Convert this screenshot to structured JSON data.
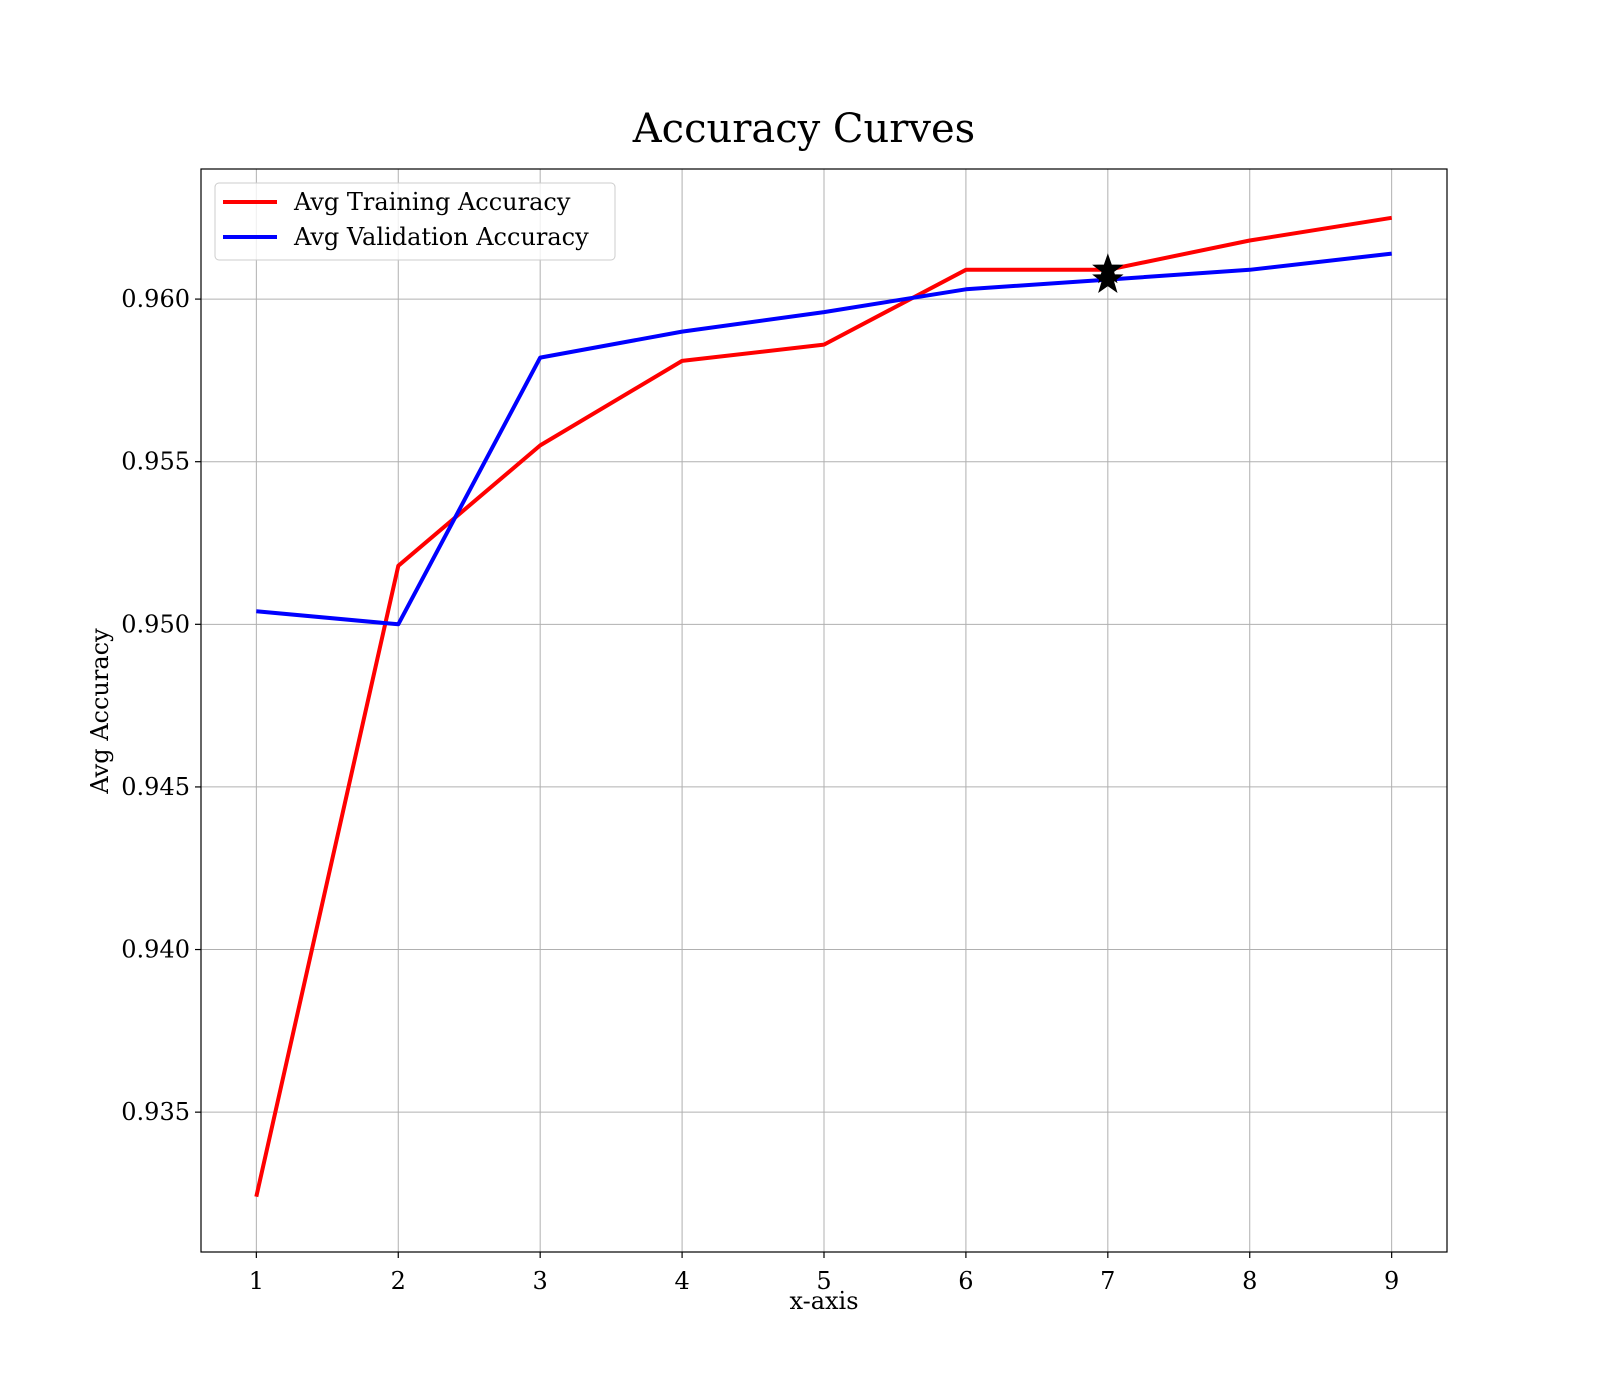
{
  "chart_data": {
    "type": "line",
    "title": "Accuracy Curves",
    "xlabel": "x-axis",
    "ylabel": "Avg Accuracy",
    "x": [
      1,
      2,
      3,
      4,
      5,
      6,
      7,
      8,
      9
    ],
    "xticks": [
      "1",
      "2",
      "3",
      "4",
      "5",
      "6",
      "7",
      "8",
      "9"
    ],
    "yticks": [
      "0.935",
      "0.940",
      "0.945",
      "0.950",
      "0.955",
      "0.960"
    ],
    "ytick_values": [
      0.935,
      0.94,
      0.945,
      0.95,
      0.955,
      0.96
    ],
    "xlim": [
      0.61,
      9.39
    ],
    "ylim": [
      0.9307,
      0.964
    ],
    "grid": true,
    "legend_position": "upper-left",
    "series": [
      {
        "name": "Avg Training Accuracy",
        "color": "#ff0000",
        "values": [
          0.9324,
          0.9518,
          0.9555,
          0.9581,
          0.9586,
          0.9609,
          0.9609,
          0.9618,
          0.9625
        ]
      },
      {
        "name": "Avg Validation Accuracy",
        "color": "#0000ff",
        "values": [
          0.9504,
          0.95,
          0.9582,
          0.959,
          0.9596,
          0.9603,
          0.9606,
          0.9609,
          0.9614
        ]
      }
    ],
    "markers": [
      {
        "x": 7,
        "y": 0.9609,
        "symbol": "star",
        "color": "#000000"
      },
      {
        "x": 7,
        "y": 0.9606,
        "symbol": "star",
        "color": "#000000"
      }
    ]
  }
}
